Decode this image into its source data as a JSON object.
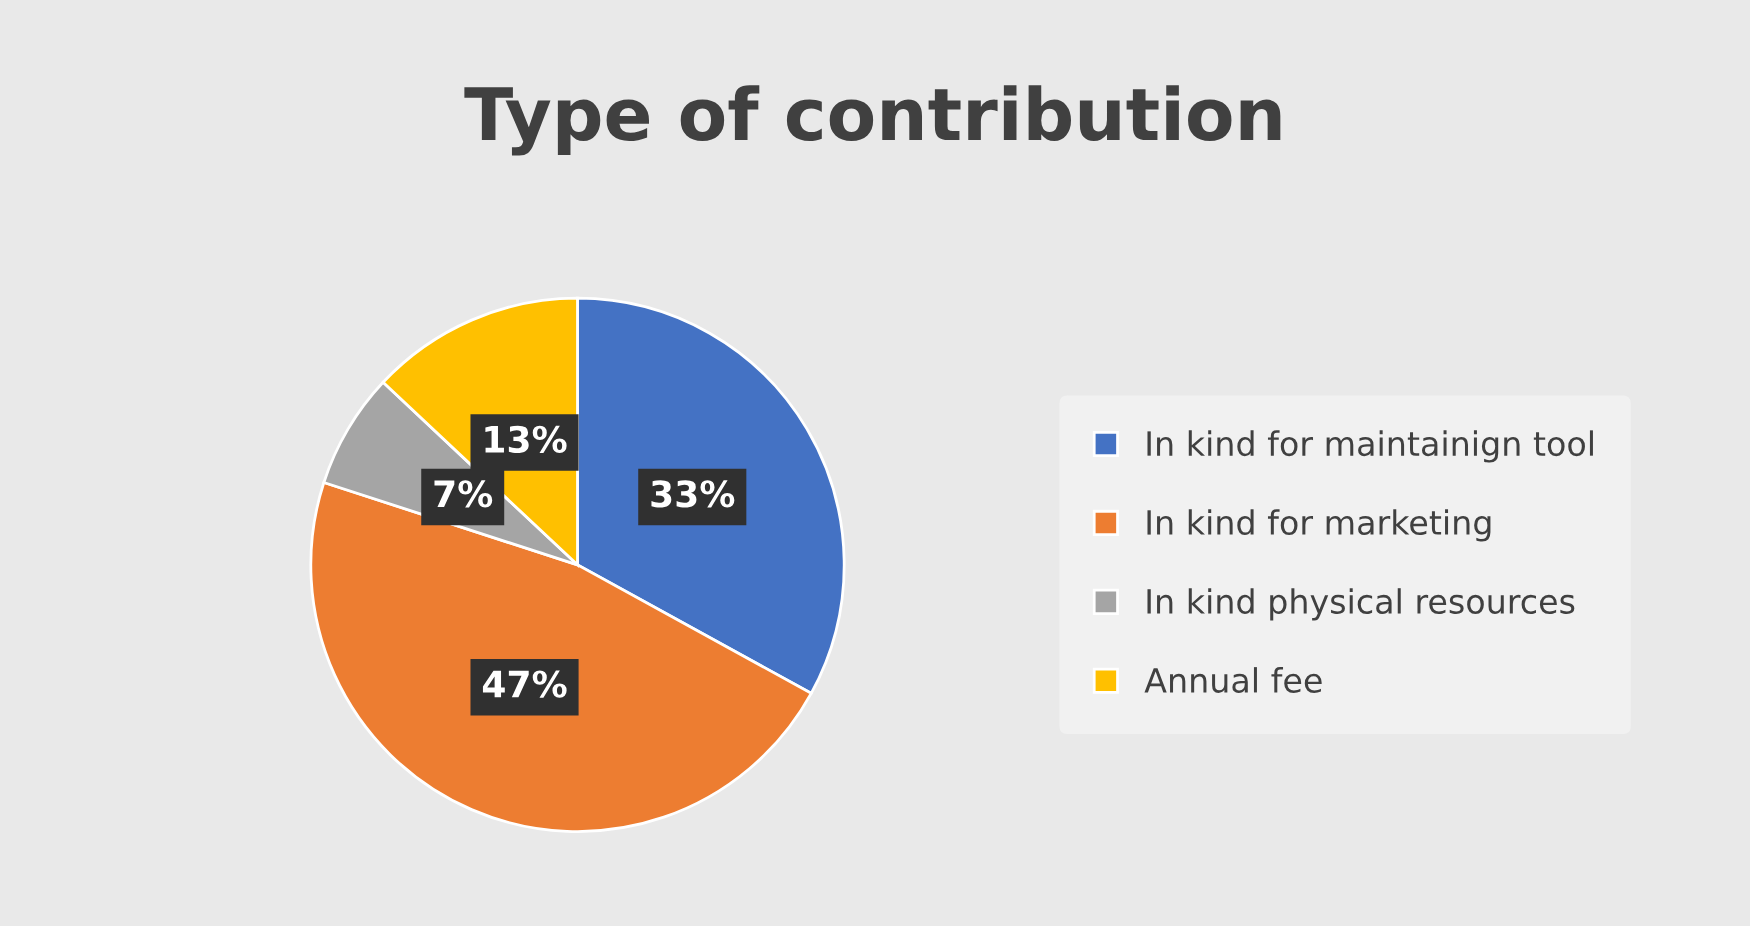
{
  "chart_data": {
    "type": "pie",
    "title": "Type of contribution",
    "categories": [
      "In kind for maintainign tool",
      "In kind for marketing",
      "In kind physical resources",
      "Annual fee"
    ],
    "values": [
      33,
      47,
      7,
      13
    ],
    "colors": [
      "#4472c4",
      "#ed7d31",
      "#a5a5a5",
      "#ffc000"
    ],
    "value_labels": [
      "33%",
      "47%",
      "7%",
      "13%"
    ],
    "legend": "right"
  }
}
